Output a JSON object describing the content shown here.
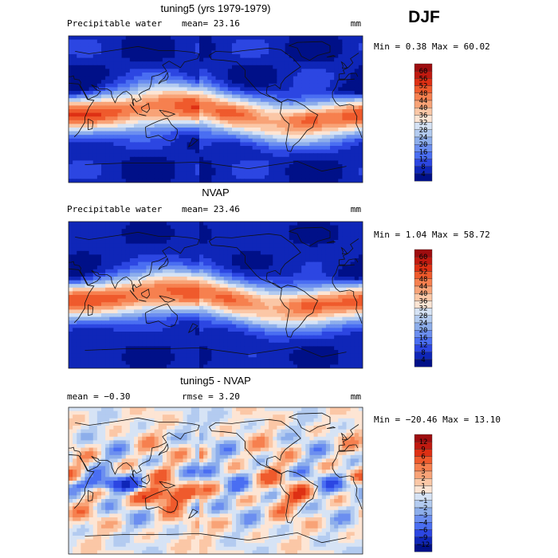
{
  "season": "DJF",
  "units_label": "mm",
  "chart_data": [
    {
      "type": "heatmap",
      "title": "tuning5 (yrs 1979-1979)",
      "variable": "Precipitable water",
      "stat_left": "",
      "stat_center": "mean=  23.16",
      "units": "mm",
      "min_max": "Min =   0.38 Max =  60.02",
      "min": 0.38,
      "max": 60.02,
      "mean": 23.16,
      "field": "model",
      "colorbar_levels": [
        "60",
        "56",
        "52",
        "48",
        "44",
        "40",
        "36",
        "32",
        "28",
        "24",
        "20",
        "16",
        "12",
        "8",
        "4"
      ],
      "colorbar_colors": [
        "#9e0d0f",
        "#c01a10",
        "#de3014",
        "#ef5a2c",
        "#f6804f",
        "#f8a377",
        "#fbc7a6",
        "#fde5d4",
        "#d6e3f5",
        "#b3cbf0",
        "#8daeeb",
        "#6b8ef0",
        "#4a6ef2",
        "#2c46e2",
        "#0f26b8",
        "#001088"
      ]
    },
    {
      "type": "heatmap",
      "title": "NVAP",
      "variable": "Precipitable water",
      "stat_left": "",
      "stat_center": "mean=  23.46",
      "units": "mm",
      "min_max": "Min =   1.04 Max =  58.72",
      "min": 1.04,
      "max": 58.72,
      "mean": 23.46,
      "field": "obs",
      "colorbar_levels": [
        "60",
        "56",
        "52",
        "48",
        "44",
        "40",
        "36",
        "32",
        "28",
        "24",
        "20",
        "16",
        "12",
        "8",
        "4"
      ],
      "colorbar_colors": [
        "#9e0d0f",
        "#c01a10",
        "#de3014",
        "#ef5a2c",
        "#f6804f",
        "#f8a377",
        "#fbc7a6",
        "#fde5d4",
        "#d6e3f5",
        "#b3cbf0",
        "#8daeeb",
        "#6b8ef0",
        "#4a6ef2",
        "#2c46e2",
        "#0f26b8",
        "#001088"
      ]
    },
    {
      "type": "heatmap",
      "title": "tuning5 - NVAP",
      "variable": "",
      "stat_left": "mean =  −0.30",
      "stat_center": "rmse =   3.20",
      "units": "mm",
      "min_max": "Min = −20.46 Max =  13.10",
      "min": -20.46,
      "max": 13.1,
      "mean": -0.3,
      "rmse": 3.2,
      "field": "diff",
      "colorbar_levels": [
        "12",
        "9",
        "6",
        "4",
        "3",
        "2",
        "1",
        "0",
        "−1",
        "−2",
        "−3",
        "−4",
        "−6",
        "−9",
        "−12"
      ],
      "colorbar_colors": [
        "#9e0d0f",
        "#c01a10",
        "#de3014",
        "#ef5a2c",
        "#f6804f",
        "#f8a377",
        "#fbc7a6",
        "#fde5d4",
        "#d6e3f5",
        "#b3cbf0",
        "#8daeeb",
        "#6b8ef0",
        "#4a6ef2",
        "#2c46e2",
        "#0f26b8",
        "#001088"
      ]
    }
  ]
}
